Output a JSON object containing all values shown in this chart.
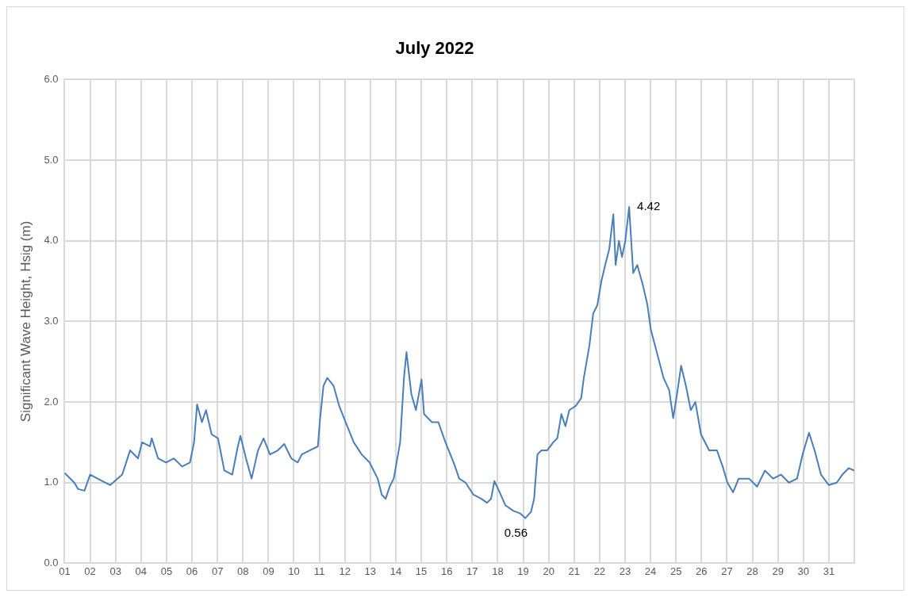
{
  "chart_data": {
    "type": "line",
    "title": "July 2022",
    "ylabel": "Significant Wave Height, Hsig (m)",
    "x": [
      1.0,
      1.38,
      1.53,
      1.78,
      2.0,
      2.47,
      2.79,
      3.26,
      3.57,
      3.88,
      4.04,
      4.35,
      4.42,
      4.67,
      4.98,
      5.29,
      5.61,
      5.92,
      6.08,
      6.2,
      6.39,
      6.55,
      6.77,
      7.02,
      7.27,
      7.58,
      7.8,
      7.9,
      8.12,
      8.34,
      8.59,
      8.81,
      9.06,
      9.37,
      9.62,
      9.9,
      10.15,
      10.31,
      10.62,
      10.94,
      11.03,
      11.16,
      11.31,
      11.56,
      11.78,
      12.03,
      12.35,
      12.66,
      12.97,
      13.29,
      13.45,
      13.6,
      13.76,
      13.92,
      14.17,
      14.32,
      14.42,
      14.61,
      14.79,
      15.01,
      15.11,
      15.42,
      15.67,
      15.95,
      16.27,
      16.49,
      16.74,
      17.05,
      17.36,
      17.58,
      17.74,
      17.87,
      18.05,
      18.3,
      18.62,
      18.87,
      19.09,
      19.31,
      19.43,
      19.56,
      19.72,
      19.94,
      20.18,
      20.34,
      20.5,
      20.66,
      20.81,
      21.06,
      21.28,
      21.38,
      21.6,
      21.75,
      21.91,
      22.07,
      22.22,
      22.38,
      22.54,
      22.63,
      22.76,
      22.88,
      23.01,
      23.16,
      23.32,
      23.48,
      23.7,
      23.88,
      24.01,
      24.26,
      24.51,
      24.73,
      24.89,
      25.04,
      25.2,
      25.39,
      25.58,
      25.76,
      25.98,
      26.3,
      26.61,
      26.83,
      27.02,
      27.24,
      27.46,
      27.87,
      28.18,
      28.49,
      28.81,
      29.12,
      29.43,
      29.75,
      29.97,
      30.22,
      30.44,
      30.69,
      31.0,
      31.31,
      31.53,
      31.78,
      32.0
    ],
    "series": [
      {
        "color": "#4a7ebb",
        "values": [
          1.12,
          1.0,
          0.92,
          0.9,
          1.1,
          1.02,
          0.97,
          1.1,
          1.4,
          1.3,
          1.5,
          1.45,
          1.55,
          1.3,
          1.25,
          1.3,
          1.2,
          1.25,
          1.5,
          1.97,
          1.75,
          1.9,
          1.6,
          1.55,
          1.15,
          1.1,
          1.45,
          1.58,
          1.3,
          1.05,
          1.4,
          1.55,
          1.35,
          1.4,
          1.48,
          1.3,
          1.25,
          1.35,
          1.4,
          1.45,
          1.8,
          2.2,
          2.3,
          2.2,
          1.95,
          1.75,
          1.5,
          1.35,
          1.25,
          1.05,
          0.85,
          0.8,
          0.95,
          1.05,
          1.5,
          2.3,
          2.62,
          2.1,
          1.9,
          2.28,
          1.85,
          1.75,
          1.75,
          1.5,
          1.25,
          1.05,
          1.0,
          0.85,
          0.8,
          0.75,
          0.8,
          1.02,
          0.9,
          0.72,
          0.65,
          0.62,
          0.56,
          0.64,
          0.8,
          1.35,
          1.4,
          1.4,
          1.5,
          1.55,
          1.85,
          1.7,
          1.9,
          1.95,
          2.05,
          2.3,
          2.7,
          3.1,
          3.2,
          3.5,
          3.7,
          3.9,
          4.33,
          3.7,
          4.0,
          3.8,
          4.0,
          4.42,
          3.6,
          3.7,
          3.45,
          3.2,
          2.9,
          2.6,
          2.3,
          2.15,
          1.8,
          2.1,
          2.45,
          2.2,
          1.9,
          2.0,
          1.6,
          1.4,
          1.4,
          1.2,
          1.0,
          0.88,
          1.05,
          1.05,
          0.95,
          1.15,
          1.05,
          1.1,
          1.0,
          1.05,
          1.35,
          1.62,
          1.4,
          1.1,
          0.97,
          1.0,
          1.1,
          1.18,
          1.15
        ]
      }
    ],
    "xlim": [
      1,
      32
    ],
    "xticks": [
      {
        "value": 1,
        "label": "01"
      },
      {
        "value": 2,
        "label": "02"
      },
      {
        "value": 3,
        "label": "03"
      },
      {
        "value": 4,
        "label": "04"
      },
      {
        "value": 5,
        "label": "05"
      },
      {
        "value": 6,
        "label": "06"
      },
      {
        "value": 7,
        "label": "07"
      },
      {
        "value": 8,
        "label": "08"
      },
      {
        "value": 9,
        "label": "09"
      },
      {
        "value": 10,
        "label": "10"
      },
      {
        "value": 11,
        "label": "11"
      },
      {
        "value": 12,
        "label": "12"
      },
      {
        "value": 13,
        "label": "13"
      },
      {
        "value": 14,
        "label": "14"
      },
      {
        "value": 15,
        "label": "15"
      },
      {
        "value": 16,
        "label": "16"
      },
      {
        "value": 17,
        "label": "17"
      },
      {
        "value": 18,
        "label": "18"
      },
      {
        "value": 19,
        "label": "19"
      },
      {
        "value": 20,
        "label": "20"
      },
      {
        "value": 21,
        "label": "21"
      },
      {
        "value": 22,
        "label": "22"
      },
      {
        "value": 23,
        "label": "23"
      },
      {
        "value": 24,
        "label": "24"
      },
      {
        "value": 25,
        "label": "25"
      },
      {
        "value": 26,
        "label": "26"
      },
      {
        "value": 27,
        "label": "27"
      },
      {
        "value": 28,
        "label": "28"
      },
      {
        "value": 29,
        "label": "29"
      },
      {
        "value": 30,
        "label": "30"
      },
      {
        "value": 31,
        "label": "31"
      },
      {
        "value": 32,
        "label": null
      }
    ],
    "ylim": [
      0,
      6
    ],
    "yticks": [
      {
        "value": 0,
        "label": "0.0"
      },
      {
        "value": 1,
        "label": "1.0"
      },
      {
        "value": 2,
        "label": "2.0"
      },
      {
        "value": 3,
        "label": "3.0"
      },
      {
        "value": 4,
        "label": "4.0"
      },
      {
        "value": 5,
        "label": "5.0"
      },
      {
        "value": 6,
        "label": "6.0"
      }
    ],
    "grid": true,
    "legend": false,
    "marker": "none",
    "line_style": "solid",
    "annotations": [
      {
        "text": "4.42",
        "x": 23.16,
        "y": 4.42
      },
      {
        "text": "0.56",
        "x": 19.09,
        "y": 0.56
      }
    ]
  }
}
